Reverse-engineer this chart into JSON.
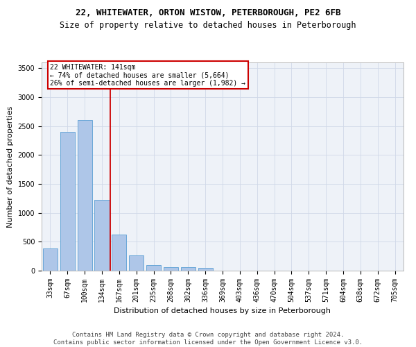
{
  "title1": "22, WHITEWATER, ORTON WISTOW, PETERBOROUGH, PE2 6FB",
  "title2": "Size of property relative to detached houses in Peterborough",
  "xlabel": "Distribution of detached houses by size in Peterborough",
  "ylabel": "Number of detached properties",
  "categories": [
    "33sqm",
    "67sqm",
    "100sqm",
    "134sqm",
    "167sqm",
    "201sqm",
    "235sqm",
    "268sqm",
    "302sqm",
    "336sqm",
    "369sqm",
    "403sqm",
    "436sqm",
    "470sqm",
    "504sqm",
    "537sqm",
    "571sqm",
    "604sqm",
    "638sqm",
    "672sqm",
    "705sqm"
  ],
  "values": [
    390,
    2400,
    2600,
    1230,
    630,
    260,
    100,
    65,
    60,
    45,
    0,
    0,
    0,
    0,
    0,
    0,
    0,
    0,
    0,
    0,
    0
  ],
  "bar_color": "#aec6e8",
  "bar_edge_color": "#5a9fd4",
  "grid_color": "#d0d8e8",
  "bg_color": "#eef2f8",
  "vline_color": "#cc0000",
  "annotation_text": "22 WHITEWATER: 141sqm\n← 74% of detached houses are smaller (5,664)\n26% of semi-detached houses are larger (1,982) →",
  "annotation_box_color": "#cc0000",
  "footer": "Contains HM Land Registry data © Crown copyright and database right 2024.\nContains public sector information licensed under the Open Government Licence v3.0.",
  "ylim_max": 3600,
  "yticks": [
    0,
    500,
    1000,
    1500,
    2000,
    2500,
    3000,
    3500
  ],
  "title_fontsize": 9,
  "subtitle_fontsize": 8.5,
  "axis_label_fontsize": 8,
  "tick_fontsize": 7,
  "footer_fontsize": 6.5
}
